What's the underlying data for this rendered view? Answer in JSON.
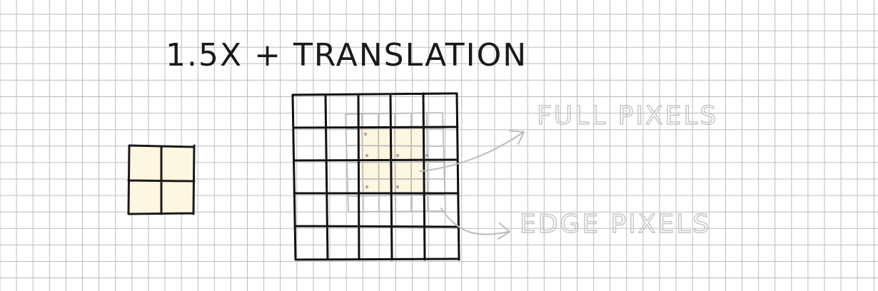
{
  "title": "1.5X + TRANSLATION",
  "annotations": {
    "full_pixels": "FULL PIXELS",
    "edge_pixels": "EDGE PIXELS"
  },
  "source_grid": {
    "rows": 2,
    "cols": 2
  },
  "target_grid": {
    "rows": 5,
    "cols": 5
  },
  "colors": {
    "background": "#ffffff",
    "paper_grid": "#bdbdbd",
    "ink": "#111111",
    "fill": "#fdf6e0",
    "faint": "#bcbcbc"
  }
}
